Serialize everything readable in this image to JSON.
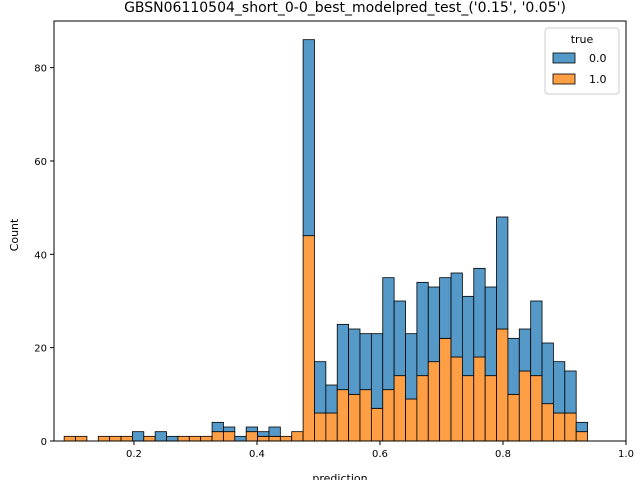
{
  "chart_data": {
    "type": "bar",
    "stacked": true,
    "title": "GBSN06110504_short_0-0_best_modelpred_test_('0.15', '0.05')",
    "xlabel": "prediction",
    "ylabel": "Count",
    "xlim": [
      0.07,
      1.0
    ],
    "ylim": [
      0,
      90
    ],
    "xticks": [
      0.2,
      0.4,
      0.6,
      0.8,
      1.0
    ],
    "xtick_labels": [
      "0.2",
      "0.4",
      "0.6",
      "0.8",
      "1.0"
    ],
    "yticks": [
      0,
      20,
      40,
      60,
      80
    ],
    "ytick_labels": [
      "0",
      "20",
      "40",
      "60",
      "80"
    ],
    "grid": false,
    "legend": {
      "title": "true",
      "position": "top-right"
    },
    "bin_start": 0.0865,
    "bin_width": 0.0185,
    "series": [
      {
        "name": "1.0",
        "color": "#ff9f45",
        "values": [
          1,
          1,
          0,
          1,
          1,
          1,
          0,
          1,
          0,
          0,
          1,
          1,
          1,
          2,
          2,
          0,
          2,
          1,
          1,
          1,
          2,
          44,
          6,
          6,
          11,
          10,
          11,
          7,
          11,
          14,
          9,
          14,
          17,
          22,
          18,
          14,
          18,
          14,
          24,
          10,
          15,
          14,
          8,
          6,
          6,
          2
        ]
      },
      {
        "name": "0.0",
        "color": "#5599c8",
        "values": [
          0,
          0,
          0,
          0,
          0,
          0,
          2,
          0,
          2,
          1,
          0,
          0,
          0,
          2,
          1,
          1,
          1,
          1,
          2,
          0,
          0,
          42,
          11,
          6,
          14,
          14,
          12,
          16,
          24,
          16,
          14,
          20,
          16,
          13,
          18,
          17,
          19,
          19,
          24,
          12,
          9,
          16,
          13,
          11,
          9,
          2
        ]
      }
    ]
  }
}
